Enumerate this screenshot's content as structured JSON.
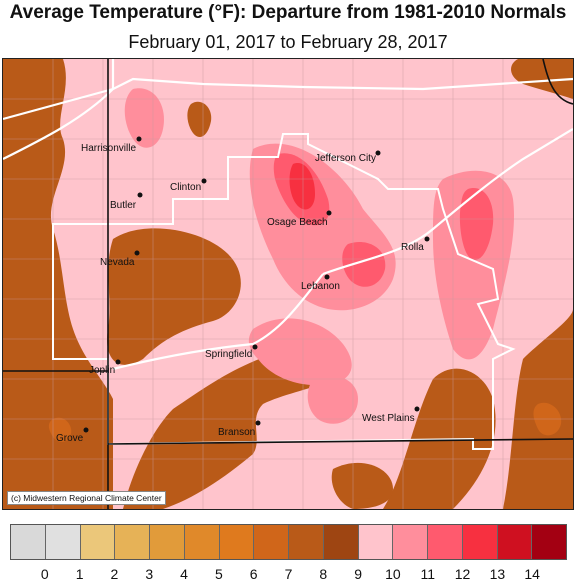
{
  "title": "Average Temperature (°F): Departure from 1981-2010 Normals",
  "subtitle": "February 01, 2017 to February 28, 2017",
  "credit": "(c) Midwestern Regional Climate Center",
  "cities": [
    {
      "name": "Harrisonville"
    },
    {
      "name": "Jefferson City"
    },
    {
      "name": "Clinton"
    },
    {
      "name": "Butler"
    },
    {
      "name": "Osage Beach"
    },
    {
      "name": "Rolla"
    },
    {
      "name": "Nevada"
    },
    {
      "name": "Lebanon"
    },
    {
      "name": "Springfield"
    },
    {
      "name": "Joplin"
    },
    {
      "name": "West Plains"
    },
    {
      "name": "Grove"
    },
    {
      "name": "Branson"
    }
  ],
  "legend": {
    "colors": [
      "#d9d9d9",
      "#e0e0e0",
      "#ebc77a",
      "#e6b257",
      "#e19b3a",
      "#e0892a",
      "#df7a1e",
      "#d0661a",
      "#b95a18",
      "#9e4512",
      "#ffc4cc",
      "#ff8e9c",
      "#ff5a6e",
      "#f73040",
      "#cf1020",
      "#a30012"
    ],
    "tick_labels": [
      "0",
      "1",
      "2",
      "3",
      "4",
      "5",
      "6",
      "7",
      "8",
      "9",
      "10",
      "11",
      "12",
      "13",
      "14"
    ]
  },
  "colors": {
    "base_pink": "#ffc4cc",
    "mid_pink": "#ff8e9c",
    "red": "#ff5a6e",
    "deep_red": "#f73040",
    "brown": "#b95a18",
    "dark_brown": "#9e4512",
    "orange": "#d0661a"
  }
}
